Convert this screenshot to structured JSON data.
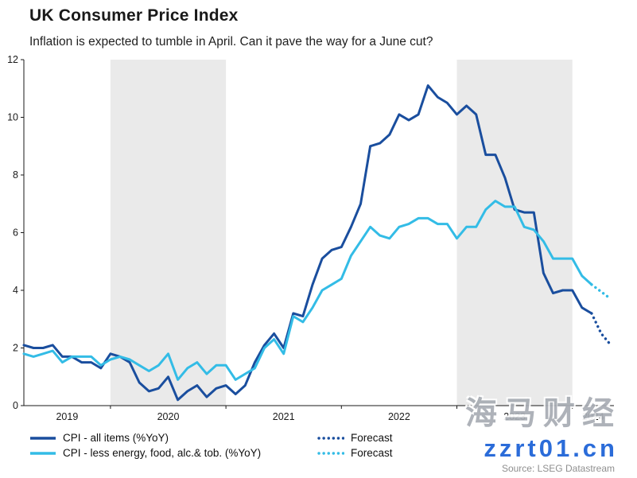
{
  "chart_data": {
    "type": "line",
    "title": "UK Consumer Price Index",
    "subtitle": "Inflation is expected to tumble in April. Can it pave the way for a June cut?",
    "frequency": "monthly",
    "x_start": "2019-04",
    "ylim": [
      0,
      12
    ],
    "yticks": [
      0,
      2,
      4,
      6,
      8,
      10,
      12
    ],
    "year_labels": [
      "2019",
      "2020",
      "2021",
      "2022",
      "2023",
      "2024"
    ],
    "shaded_years": [
      "2020",
      "2023"
    ],
    "grid": false,
    "legend_position": "bottom-left",
    "series": [
      {
        "key": "cpi-all",
        "name": "CPI - all items (%YoY)",
        "color": "#1a4e9e",
        "style": "solid",
        "values": [
          2.1,
          2.0,
          2.0,
          2.1,
          1.7,
          1.7,
          1.5,
          1.5,
          1.3,
          1.8,
          1.7,
          1.5,
          0.8,
          0.5,
          0.6,
          1.0,
          0.2,
          0.5,
          0.7,
          0.3,
          0.6,
          0.7,
          0.4,
          0.7,
          1.5,
          2.1,
          2.5,
          2.0,
          3.2,
          3.1,
          4.2,
          5.1,
          5.4,
          5.5,
          6.2,
          7.0,
          9.0,
          9.1,
          9.4,
          10.1,
          9.9,
          10.1,
          11.1,
          10.7,
          10.5,
          10.1,
          10.4,
          10.1,
          8.7,
          8.7,
          7.9,
          6.8,
          6.7,
          6.7,
          4.6,
          3.9,
          4.0,
          4.0,
          3.4,
          3.2
        ]
      },
      {
        "key": "cpi-core",
        "name": "CPI - less energy, food, alc.& tob. (%YoY)",
        "color": "#33bce6",
        "style": "solid",
        "values": [
          1.8,
          1.7,
          1.8,
          1.9,
          1.5,
          1.7,
          1.7,
          1.7,
          1.4,
          1.6,
          1.7,
          1.6,
          1.4,
          1.2,
          1.4,
          1.8,
          0.9,
          1.3,
          1.5,
          1.1,
          1.4,
          1.4,
          0.9,
          1.1,
          1.3,
          2.0,
          2.3,
          1.8,
          3.1,
          2.9,
          3.4,
          4.0,
          4.2,
          4.4,
          5.2,
          5.7,
          6.2,
          5.9,
          5.8,
          6.2,
          6.3,
          6.5,
          6.5,
          6.3,
          6.3,
          5.8,
          6.2,
          6.2,
          6.8,
          7.1,
          6.9,
          6.9,
          6.2,
          6.1,
          5.7,
          5.1,
          5.1,
          5.1,
          4.5,
          4.2
        ]
      },
      {
        "key": "cpi-all-forecast",
        "name": "Forecast",
        "color": "#1a4e9e",
        "style": "dotted",
        "start_index": 59,
        "values": [
          3.2,
          2.5,
          2.1
        ]
      },
      {
        "key": "cpi-core-forecast",
        "name": "Forecast",
        "color": "#33bce6",
        "style": "dotted",
        "start_index": 59,
        "values": [
          4.2,
          3.95,
          3.7
        ]
      }
    ]
  },
  "source": "Source: LSEG Datastream",
  "watermark": {
    "line1": "海马财经",
    "line2": "zzrt01.cn"
  },
  "colors": {
    "band": "#eaeaea",
    "axis": "#1a1a1a",
    "source_text": "#8f8f8f",
    "watermark_cjk": "#a8adb4",
    "watermark_url": "#2b6cd9"
  }
}
